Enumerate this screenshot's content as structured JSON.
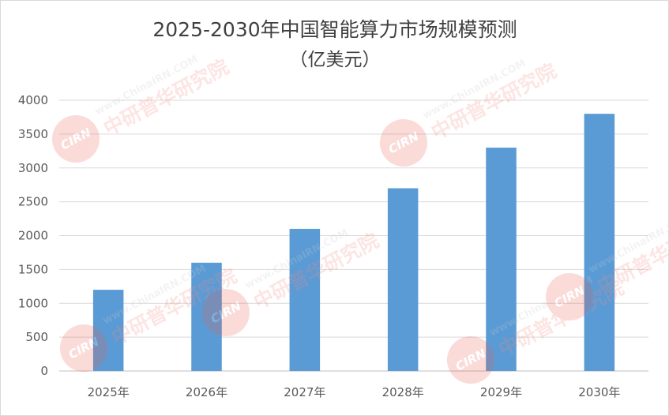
{
  "chart_data": {
    "type": "bar",
    "title": "2025-2030年中国智能算力市场规模预测",
    "subtitle": "（亿美元）",
    "categories": [
      "2025年",
      "2026年",
      "2027年",
      "2028年",
      "2029年",
      "2030年"
    ],
    "values": [
      1200,
      1600,
      2100,
      2700,
      3300,
      3800
    ],
    "y_ticks": [
      "0",
      "500",
      "1000",
      "1500",
      "2000",
      "2500",
      "3000",
      "3500",
      "4000"
    ],
    "ylim": [
      0,
      4000
    ],
    "grid": true,
    "legend": "none",
    "bar_color": "#5b9bd5"
  },
  "watermark": {
    "logo": "CIRN",
    "url": "www.ChinaIRN.COM",
    "name": "中研普华研究院"
  }
}
